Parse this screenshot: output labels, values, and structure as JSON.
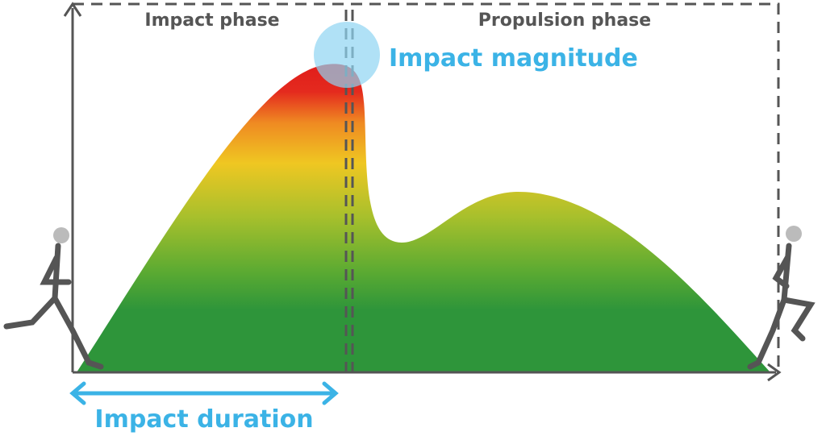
{
  "phases": [
    "Impact phase",
    "Propulsion phase"
  ],
  "annotations": {
    "magnitude": "Impact magnitude",
    "duration": "Impact duration"
  }
}
